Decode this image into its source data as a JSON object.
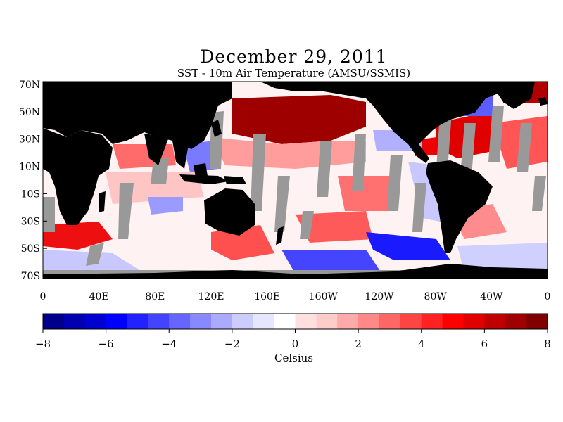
{
  "figure": {
    "title": "December 29, 2011",
    "subtitle": "SST - 10m Air Temperature (AMSU/SSMIS)",
    "units_label": "Celsius"
  },
  "map": {
    "lat_labels": [
      "70N",
      "50N",
      "30N",
      "10N",
      "10S",
      "30S",
      "50S",
      "70S"
    ],
    "lon_labels": [
      "0",
      "40E",
      "80E",
      "120E",
      "160E",
      "160W",
      "120W",
      "80W",
      "40W",
      "0"
    ],
    "land_color": "#000000",
    "missing_color": "#999999"
  },
  "colorbar": {
    "min": -8,
    "max": 8,
    "tick_labels": [
      "−8",
      "−6",
      "−4",
      "−2",
      "0",
      "2",
      "4",
      "6",
      "8"
    ],
    "colors": [
      "#00008b",
      "#0000b0",
      "#0000d0",
      "#0000ff",
      "#2222ff",
      "#4444ff",
      "#6666ff",
      "#8888ff",
      "#aaaaff",
      "#ccccff",
      "#e6e6ff",
      "#ffffff",
      "#ffe0e0",
      "#ffcccc",
      "#ffaaaa",
      "#ff8888",
      "#ff6666",
      "#ff4444",
      "#ff2222",
      "#ff0000",
      "#e00000",
      "#c00000",
      "#a00000",
      "#800000"
    ]
  }
}
